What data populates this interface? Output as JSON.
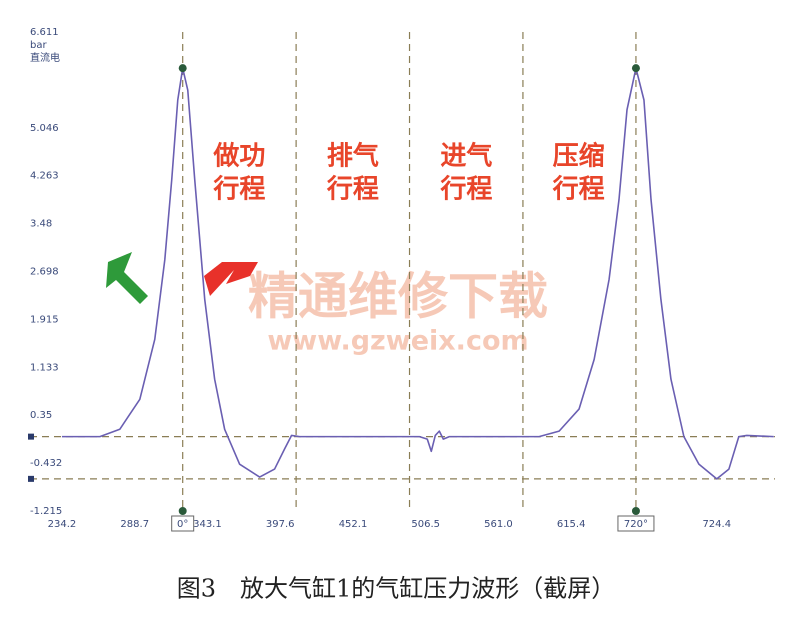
{
  "chart_data": {
    "type": "line",
    "unit_labels": [
      "bar",
      "直流电"
    ],
    "x": [
      234.2,
      262.6,
      277.5,
      292.5,
      303.7,
      311.2,
      316.4,
      320.9,
      324.6,
      328.4,
      333.6,
      341.1,
      348.5,
      356.0,
      367.2,
      382.2,
      393.4,
      400.9,
      406.1,
      412.1,
      501.8,
      507.7,
      510.7,
      513.7,
      516.7,
      519.7,
      524.2,
      591.4,
      606.4,
      621.3,
      632.6,
      643.8,
      651.2,
      657.2,
      663.9,
      669.9,
      675.2,
      682.6,
      690.1,
      699.8,
      711.0,
      724.4,
      733.5,
      740.9,
      746.9,
      767.1
    ],
    "series": [
      {
        "color": "#6a5fb2",
        "values": [
          0,
          0,
          0.12,
          0.61,
          1.59,
          2.89,
          4.2,
          5.5,
          6.02,
          5.66,
          4.2,
          2.24,
          0.94,
          0.12,
          -0.45,
          -0.66,
          -0.53,
          -0.2,
          0.02,
          0,
          0,
          -0.04,
          -0.24,
          0.02,
          0.09,
          -0.04,
          0,
          0,
          0.09,
          0.45,
          1.26,
          2.57,
          3.87,
          5.34,
          6.02,
          5.5,
          3.87,
          2.24,
          0.94,
          0,
          -0.45,
          -0.69,
          -0.53,
          0,
          0.02,
          0
        ]
      }
    ],
    "xlim": [
      229.0,
      768.0
    ],
    "ylim": [
      -1.215,
      6.611
    ],
    "xticks": [
      234.2,
      288.7,
      343.1,
      397.6,
      452.1,
      506.5,
      {
        "value": 561,
        "label": "561.0"
      },
      615.4,
      724.4
    ],
    "yticks": [
      6.611,
      5.046,
      4.263,
      3.48,
      2.698,
      1.915,
      1.133,
      0.35,
      -0.432,
      -1.215
    ],
    "vlines": [
      324.6,
      409.5,
      494.4,
      579.3,
      663.9
    ],
    "hlines": [
      0,
      -0.69
    ],
    "markers": [
      {
        "x": 324.6,
        "y": 6.02,
        "label": "0°"
      },
      {
        "x": 663.9,
        "y": 6.02,
        "label": "720°"
      }
    ],
    "annotations": [
      {
        "x": 367,
        "text": [
          "做功",
          "行程"
        ]
      },
      {
        "x": 452,
        "text": [
          "排气",
          "行程"
        ]
      },
      {
        "x": 537,
        "text": [
          "进气",
          "行程"
        ]
      },
      {
        "x": 621,
        "text": [
          "压缩",
          "行程"
        ]
      }
    ],
    "watermark": [
      "精通维修下载",
      "www.gzweix.com"
    ],
    "caption": "图3　放大气缸1的气缸压力波形（截屏）"
  }
}
